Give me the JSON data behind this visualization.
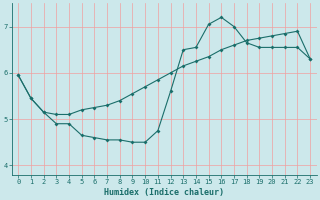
{
  "xlabel": "Humidex (Indice chaleur)",
  "ylabel": "",
  "xlim": [
    -0.5,
    23.5
  ],
  "ylim": [
    3.8,
    7.5
  ],
  "yticks": [
    4,
    5,
    6,
    7
  ],
  "xticks": [
    0,
    1,
    2,
    3,
    4,
    5,
    6,
    7,
    8,
    9,
    10,
    11,
    12,
    13,
    14,
    15,
    16,
    17,
    18,
    19,
    20,
    21,
    22,
    23
  ],
  "bg_color": "#cce8eb",
  "line_color": "#1a6e6a",
  "grid_color_v": "#f0a0a0",
  "grid_color_h": "#f0a0a0",
  "line1_x": [
    0,
    1,
    2,
    3,
    4,
    5,
    6,
    7,
    8,
    9,
    10,
    11,
    12,
    13,
    14,
    15,
    16,
    17,
    18,
    19,
    20,
    21,
    22,
    23
  ],
  "line1_y": [
    5.95,
    5.45,
    5.15,
    4.9,
    4.9,
    4.65,
    4.6,
    4.55,
    4.55,
    4.5,
    4.5,
    4.75,
    5.6,
    6.5,
    6.55,
    7.05,
    7.2,
    7.0,
    6.65,
    6.55,
    6.55,
    6.55,
    6.55,
    6.3
  ],
  "line2_x": [
    0,
    1,
    2,
    3,
    4,
    5,
    6,
    7,
    8,
    9,
    10,
    11,
    12,
    13,
    14,
    15,
    16,
    17,
    18,
    19,
    20,
    21,
    22,
    23
  ],
  "line2_y": [
    5.95,
    5.45,
    5.15,
    5.1,
    5.1,
    5.2,
    5.25,
    5.3,
    5.4,
    5.55,
    5.7,
    5.85,
    6.0,
    6.15,
    6.25,
    6.35,
    6.5,
    6.6,
    6.7,
    6.75,
    6.8,
    6.85,
    6.9,
    6.3
  ],
  "tick_fontsize": 5,
  "xlabel_fontsize": 6,
  "marker": "D",
  "markersize": 2,
  "linewidth": 0.8
}
